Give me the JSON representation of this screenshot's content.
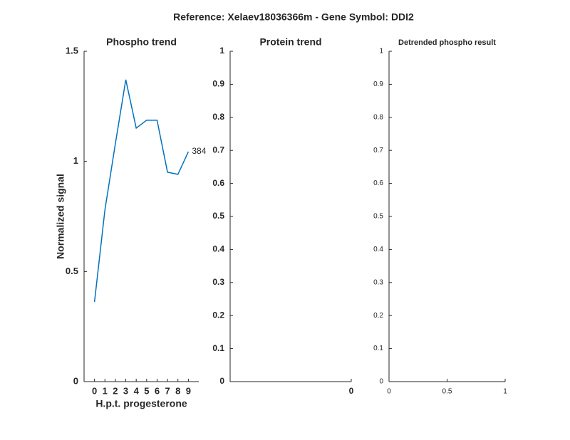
{
  "title": "Reference:  Xelaev18036366m - Gene Symbol:  DDI2",
  "chart_data": [
    {
      "type": "line",
      "title": "Phospho trend",
      "xlabel": "H.p.t. progesterone",
      "ylabel": "Normalized signal",
      "x": [
        0,
        1,
        2,
        3,
        4,
        5,
        6,
        7,
        8,
        9
      ],
      "series": [
        {
          "color": "#0072bd",
          "values": [
            0.362,
            0.78,
            1.08,
            1.371,
            1.151,
            1.187,
            1.187,
            0.951,
            0.941,
            1.044
          ]
        }
      ],
      "annotation": "384",
      "xlim": [
        -1,
        10
      ],
      "xticks": [
        0,
        1,
        2,
        3,
        4,
        5,
        6,
        7,
        8,
        9
      ],
      "ylim": [
        0,
        1.5
      ],
      "yticks": [
        0,
        0.5,
        1,
        1.5
      ]
    },
    {
      "type": "line",
      "title": "Protein trend",
      "xlim": [
        -1,
        0
      ],
      "xticks": [
        0
      ],
      "ylim": [
        0,
        1
      ],
      "yticks": [
        0,
        0.1,
        0.2,
        0.3,
        0.4,
        0.5,
        0.6,
        0.7,
        0.8,
        0.9,
        1
      ]
    },
    {
      "type": "line",
      "title": "Detrended phospho result",
      "xlim": [
        0,
        1
      ],
      "xticks": [
        0,
        0.5,
        1
      ],
      "ylim": [
        0,
        1
      ],
      "yticks": [
        0,
        0.1,
        0.2,
        0.3,
        0.4,
        0.5,
        0.6,
        0.7,
        0.8,
        0.9,
        1
      ]
    }
  ]
}
